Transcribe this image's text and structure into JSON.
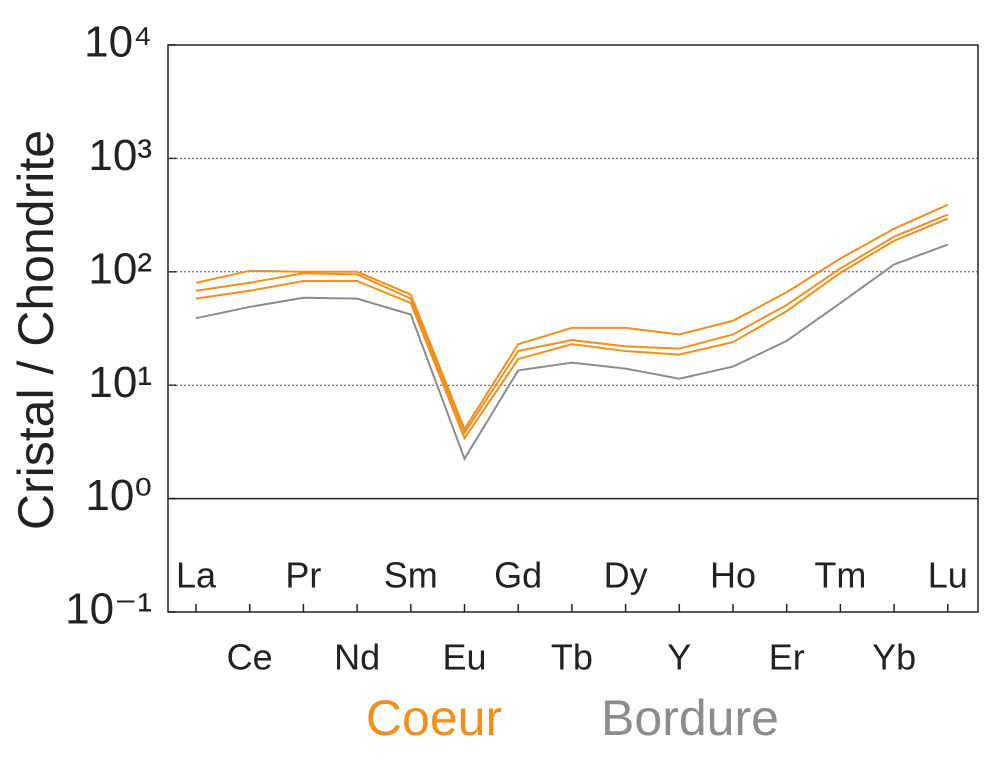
{
  "chart_data": {
    "type": "line",
    "y_label": "Cristal / Chondrite",
    "categories": [
      "La",
      "Ce",
      "Pr",
      "Nd",
      "Sm",
      "Eu",
      "Gd",
      "Tb",
      "Dy",
      "Y",
      "Ho",
      "Er",
      "Tm",
      "Yb",
      "Lu"
    ],
    "groups": [
      {
        "name": "Coeur",
        "color": "#f0901e"
      },
      {
        "name": "Bordure",
        "color": "#8c8c8c"
      }
    ],
    "series": [
      {
        "group": 0,
        "values": [
          80,
          102,
          100,
          100,
          63,
          4.1,
          23,
          32,
          32,
          28,
          37,
          66,
          131,
          240,
          390
        ]
      },
      {
        "group": 0,
        "values": [
          68,
          80,
          97,
          95,
          58,
          3.8,
          20,
          25,
          22,
          21,
          28,
          51,
          107,
          204,
          320
        ]
      },
      {
        "group": 0,
        "values": [
          58,
          68,
          83,
          83,
          53,
          3.4,
          17,
          23,
          20,
          18.6,
          24,
          45,
          98,
          188,
          295
        ]
      },
      {
        "group": 1,
        "values": [
          39,
          49,
          59,
          58,
          42,
          2.25,
          13.5,
          15.8,
          14,
          11.4,
          14.6,
          24.6,
          53,
          116,
          174
        ]
      }
    ],
    "log_y": true,
    "ylim": [
      0.1,
      10000
    ],
    "yticks": [
      {
        "value": 0.1,
        "label": "10⁻¹"
      },
      {
        "value": 1,
        "label": "10⁰"
      },
      {
        "value": 10,
        "label": "10¹"
      },
      {
        "value": 100,
        "label": "10²"
      },
      {
        "value": 1000,
        "label": "10³"
      },
      {
        "value": 10000,
        "label": "10⁴"
      }
    ],
    "grid": true,
    "baseline": 1
  }
}
